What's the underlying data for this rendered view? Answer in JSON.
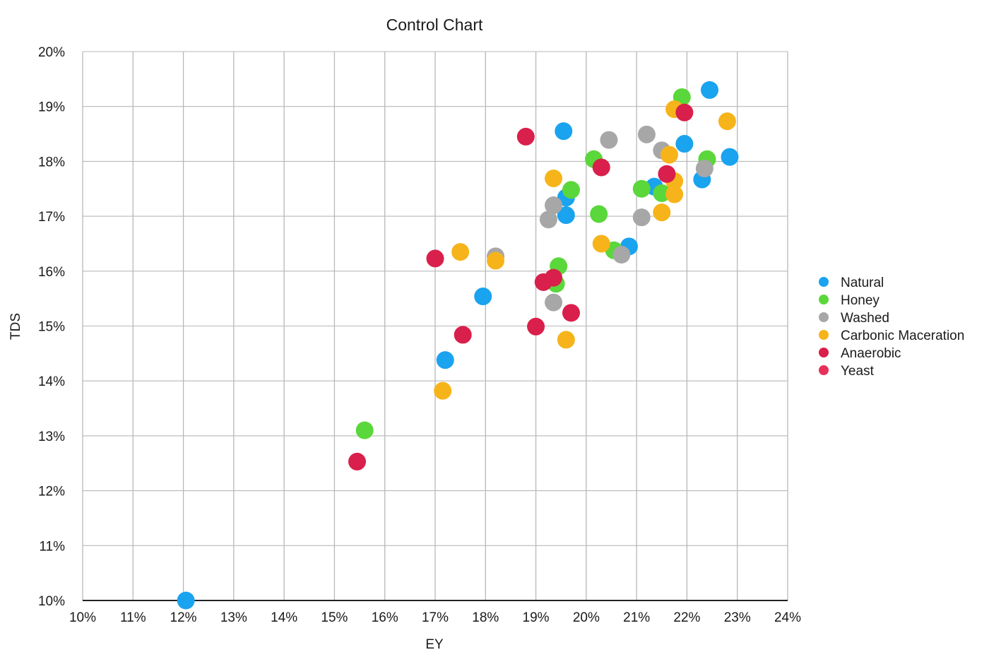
{
  "chart_data": {
    "type": "scatter",
    "title": "Control Chart",
    "xlabel": "EY",
    "ylabel": "TDS",
    "xlim": [
      10,
      24
    ],
    "ylim": [
      10,
      20
    ],
    "x_ticks": [
      "10%",
      "11%",
      "12%",
      "13%",
      "14%",
      "15%",
      "16%",
      "17%",
      "18%",
      "19%",
      "20%",
      "21%",
      "22%",
      "23%",
      "24%"
    ],
    "y_ticks": [
      "10%",
      "11%",
      "12%",
      "13%",
      "14%",
      "15%",
      "16%",
      "17%",
      "18%",
      "19%",
      "20%"
    ],
    "grid": true,
    "legend_position": "right",
    "series": [
      {
        "name": "Natural",
        "color": "#1aa3ef",
        "points": [
          [
            12.05,
            10.0
          ],
          [
            17.2,
            14.38
          ],
          [
            17.95,
            15.54
          ],
          [
            19.55,
            18.55
          ],
          [
            19.6,
            17.34
          ],
          [
            19.6,
            17.02
          ],
          [
            20.85,
            16.45
          ],
          [
            21.35,
            17.54
          ],
          [
            21.95,
            18.32
          ],
          [
            22.3,
            17.67
          ],
          [
            22.45,
            19.3
          ],
          [
            22.85,
            18.08
          ]
        ]
      },
      {
        "name": "Honey",
        "color": "#5ad73a",
        "points": [
          [
            15.6,
            13.1
          ],
          [
            19.4,
            15.77
          ],
          [
            19.45,
            16.09
          ],
          [
            19.7,
            17.48
          ],
          [
            20.15,
            18.04
          ],
          [
            20.25,
            17.04
          ],
          [
            20.55,
            16.38
          ],
          [
            21.1,
            17.5
          ],
          [
            21.5,
            17.42
          ],
          [
            21.9,
            19.17
          ],
          [
            22.4,
            18.04
          ]
        ]
      },
      {
        "name": "Washed",
        "color": "#a7a7a7",
        "points": [
          [
            18.2,
            16.27
          ],
          [
            19.25,
            16.94
          ],
          [
            19.35,
            17.2
          ],
          [
            19.35,
            15.43
          ],
          [
            20.45,
            18.39
          ],
          [
            20.7,
            16.3
          ],
          [
            21.1,
            16.98
          ],
          [
            21.2,
            18.49
          ],
          [
            21.5,
            18.2
          ],
          [
            22.35,
            17.87
          ]
        ]
      },
      {
        "name": "Carbonic Maceration",
        "color": "#f6b41a",
        "points": [
          [
            17.15,
            13.82
          ],
          [
            17.5,
            16.35
          ],
          [
            18.2,
            16.19
          ],
          [
            19.35,
            17.69
          ],
          [
            19.6,
            14.75
          ],
          [
            20.3,
            16.5
          ],
          [
            21.5,
            17.07
          ],
          [
            21.65,
            18.12
          ],
          [
            21.75,
            17.4
          ],
          [
            21.75,
            17.64
          ],
          [
            21.75,
            18.95
          ],
          [
            22.8,
            18.73
          ]
        ]
      },
      {
        "name": "Anaerobic",
        "color": "#d91f4b",
        "points": [
          [
            15.45,
            12.53
          ],
          [
            17.0,
            16.23
          ],
          [
            17.55,
            14.84
          ],
          [
            18.8,
            18.45
          ],
          [
            19.0,
            14.99
          ],
          [
            19.15,
            15.8
          ],
          [
            19.35,
            15.88
          ],
          [
            19.7,
            15.24
          ],
          [
            20.3,
            17.89
          ],
          [
            21.6,
            17.77
          ],
          [
            21.95,
            18.89
          ]
        ]
      },
      {
        "name": "Yeast",
        "color": "#e8305a",
        "points": []
      }
    ]
  }
}
